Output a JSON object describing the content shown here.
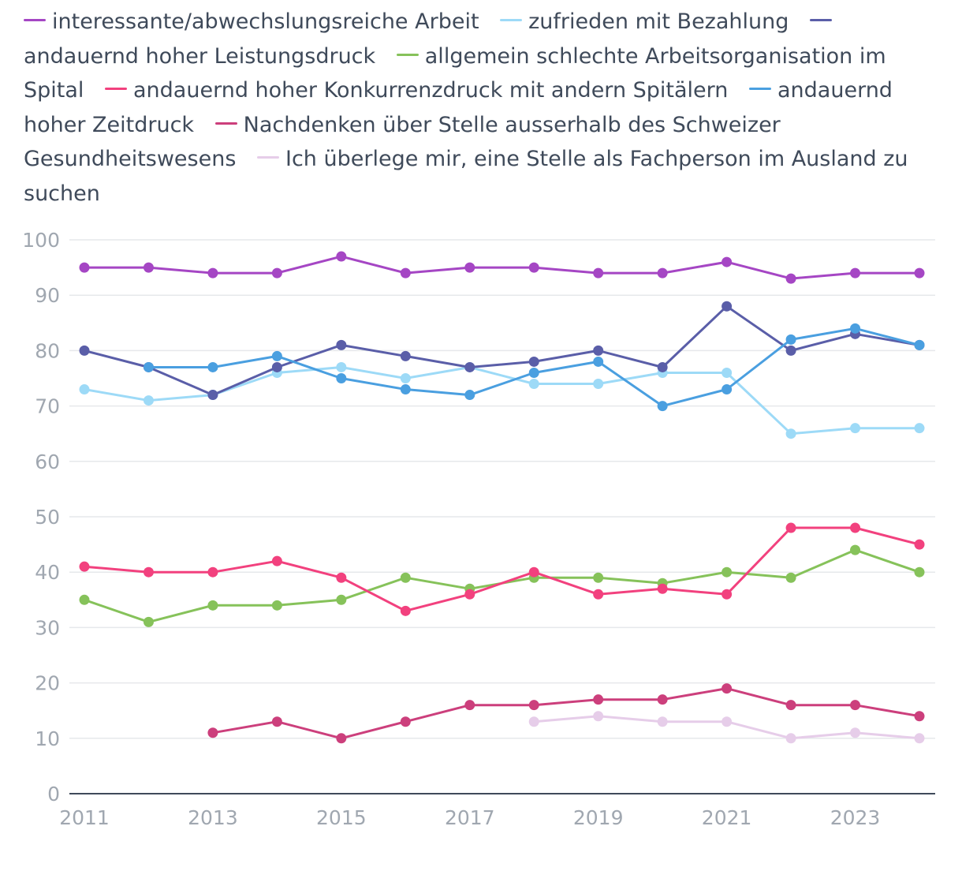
{
  "chart_data": {
    "type": "line",
    "title": "",
    "xlabel": "",
    "ylabel": "",
    "x": [
      2011,
      2012,
      2013,
      2014,
      2015,
      2016,
      2017,
      2018,
      2019,
      2020,
      2021,
      2022,
      2023,
      2024
    ],
    "x_ticks": [
      "2011",
      "2013",
      "2015",
      "2017",
      "2019",
      "2021",
      "2023"
    ],
    "y_ticks": [
      "0",
      "10",
      "20",
      "30",
      "40",
      "50",
      "60",
      "70",
      "80",
      "90",
      "100"
    ],
    "ylim": [
      0,
      100
    ],
    "grid": true,
    "legend_position": "top",
    "series": [
      {
        "name": "interessante/abwechslungsreiche Arbeit",
        "color": "#a546c4",
        "values": [
          95,
          95,
          94,
          94,
          97,
          94,
          95,
          95,
          94,
          94,
          96,
          93,
          94,
          94
        ]
      },
      {
        "name": "zufrieden mit Bezahlung",
        "color": "#9ddaf7",
        "values": [
          73,
          71,
          72,
          76,
          77,
          75,
          77,
          74,
          74,
          76,
          76,
          65,
          66,
          66
        ]
      },
      {
        "name": "andauernd hoher Leistungsdruck",
        "color": "#5a5ea8",
        "values": [
          80,
          77,
          72,
          77,
          81,
          79,
          77,
          78,
          80,
          77,
          88,
          80,
          83,
          81
        ]
      },
      {
        "name": "allgemein schlechte Arbeitsorganisation im Spital",
        "color": "#86c25a",
        "values": [
          35,
          31,
          34,
          34,
          35,
          39,
          37,
          39,
          39,
          38,
          40,
          39,
          44,
          40
        ]
      },
      {
        "name": "andauernd hoher Konkurrenzdruck mit andern Spitälern",
        "color": "#f2417e",
        "values": [
          41,
          40,
          40,
          42,
          39,
          33,
          36,
          40,
          36,
          37,
          36,
          48,
          48,
          45
        ]
      },
      {
        "name": "andauernd hoher Zeitdruck",
        "color": "#4a9fe0",
        "values": [
          null,
          77,
          77,
          79,
          75,
          73,
          72,
          76,
          78,
          70,
          73,
          82,
          84,
          81
        ]
      },
      {
        "name": "Nachdenken über Stelle ausserhalb des Schweizer Gesundheitswesens",
        "color": "#cc3f7c",
        "values": [
          null,
          null,
          11,
          13,
          10,
          13,
          16,
          16,
          17,
          17,
          19,
          16,
          16,
          14
        ]
      },
      {
        "name": "Ich überlege mir, eine Stelle als Fachperson im Ausland zu suchen",
        "color": "#e6cde9",
        "values": [
          null,
          null,
          null,
          null,
          null,
          null,
          null,
          13,
          14,
          13,
          13,
          10,
          11,
          10
        ]
      }
    ]
  }
}
